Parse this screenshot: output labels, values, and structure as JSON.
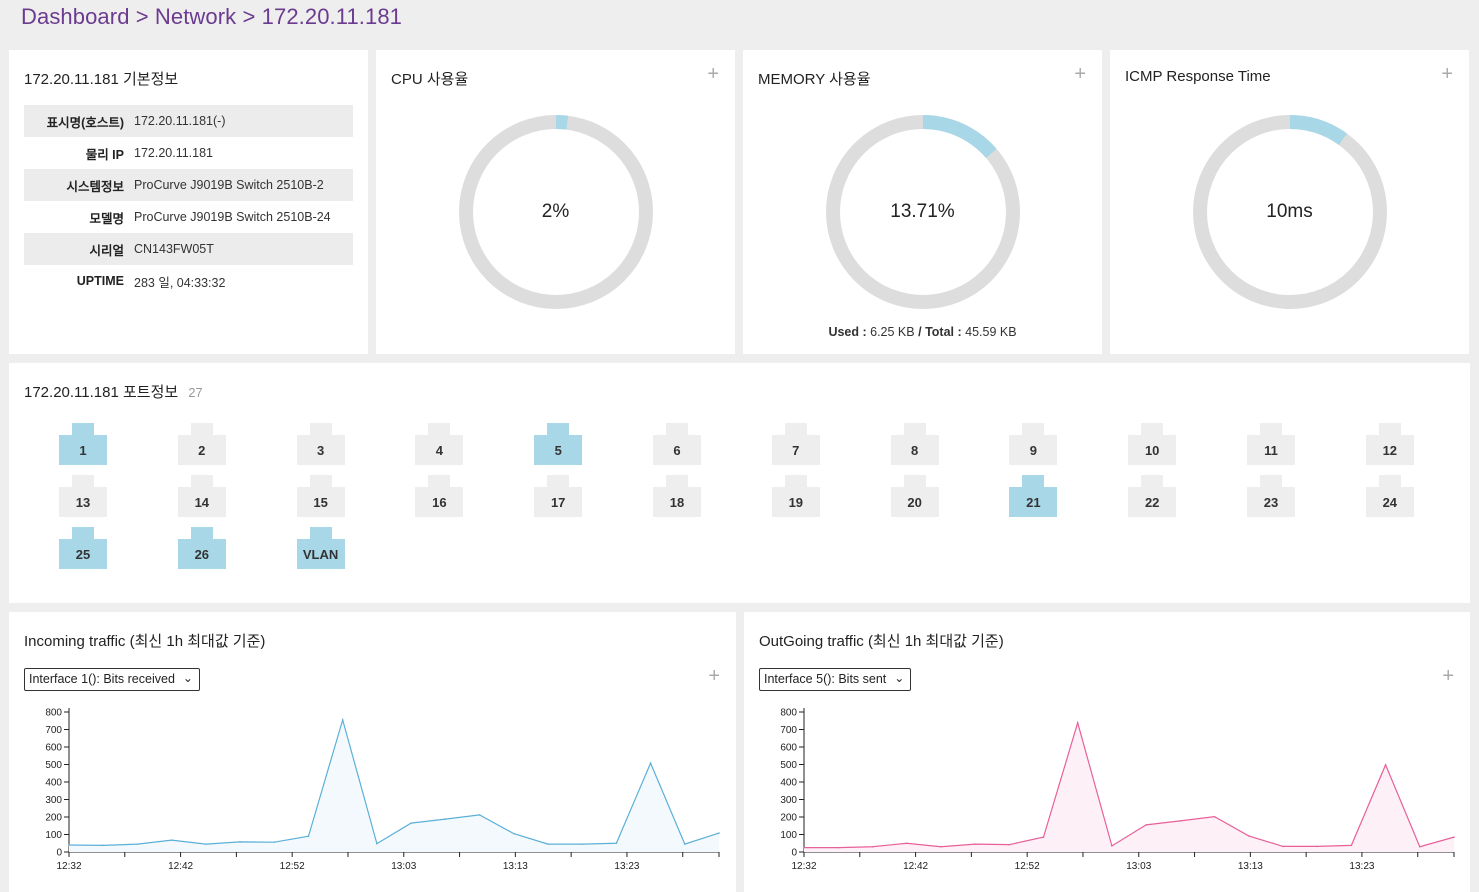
{
  "breadcrumb": "Dashboard > Network > 172.20.11.181",
  "basic_info": {
    "title": "172.20.11.181 기본정보",
    "rows": [
      {
        "key": "표시명(호스트)",
        "value": "172.20.11.181(-)"
      },
      {
        "key": "물리 IP",
        "value": "172.20.11.181"
      },
      {
        "key": "시스템정보",
        "value": "ProCurve J9019B Switch 2510B-2"
      },
      {
        "key": "모델명",
        "value": "ProCurve J9019B Switch 2510B-24"
      },
      {
        "key": "시리얼",
        "value": "CN143FW05T"
      },
      {
        "key": "UPTIME",
        "value": "283 일, 04:33:32"
      }
    ]
  },
  "cpu": {
    "title": "CPU 사용율",
    "value_text": "2%",
    "fraction": 0.02,
    "plus": "+"
  },
  "memory": {
    "title": "MEMORY 사용율",
    "value_text": "13.71%",
    "fraction": 0.1371,
    "plus": "+",
    "used_label": "Used :",
    "used": "6.25 KB",
    "sep": "/",
    "total_label": "Total :",
    "total": "45.59 KB"
  },
  "icmp": {
    "title": "ICMP Response Time",
    "value_text": "10ms",
    "fraction": 0.1,
    "plus": "+"
  },
  "colors": {
    "donut_track": "#dddddd",
    "donut_fill": "#a8d8e8",
    "incoming_line": "#5bb0d8",
    "incoming_fill": "#f3f9fc",
    "outgoing_line": "#e8609a",
    "outgoing_fill": "#fdf0f6"
  },
  "ports": {
    "title": "172.20.11.181 포트정보",
    "count": "27",
    "items": [
      {
        "label": "1",
        "active": true
      },
      {
        "label": "2",
        "active": false
      },
      {
        "label": "3",
        "active": false
      },
      {
        "label": "4",
        "active": false
      },
      {
        "label": "5",
        "active": true
      },
      {
        "label": "6",
        "active": false
      },
      {
        "label": "7",
        "active": false
      },
      {
        "label": "8",
        "active": false
      },
      {
        "label": "9",
        "active": false
      },
      {
        "label": "10",
        "active": false
      },
      {
        "label": "11",
        "active": false
      },
      {
        "label": "12",
        "active": false
      },
      {
        "label": "13",
        "active": false
      },
      {
        "label": "14",
        "active": false
      },
      {
        "label": "15",
        "active": false
      },
      {
        "label": "16",
        "active": false
      },
      {
        "label": "17",
        "active": false
      },
      {
        "label": "18",
        "active": false
      },
      {
        "label": "19",
        "active": false
      },
      {
        "label": "20",
        "active": false
      },
      {
        "label": "21",
        "active": true
      },
      {
        "label": "22",
        "active": false
      },
      {
        "label": "23",
        "active": false
      },
      {
        "label": "24",
        "active": false
      },
      {
        "label": "25",
        "active": true
      },
      {
        "label": "26",
        "active": true
      },
      {
        "label": "VLAN",
        "active": true
      }
    ]
  },
  "incoming": {
    "title": "Incoming traffic (최신 1h 최대값 기준)",
    "select_value": "Interface 1(): Bits received",
    "plus": "+"
  },
  "outgoing": {
    "title": "OutGoing traffic (최신 1h 최대값 기준)",
    "select_value": "Interface 5(): Bits sent",
    "plus": "+"
  },
  "chart_data": [
    {
      "type": "area",
      "ylim": [
        0,
        800
      ],
      "yticks": [
        0,
        100,
        200,
        300,
        400,
        500,
        600,
        700,
        800
      ],
      "xtick_labels": [
        "12:32",
        "12:42",
        "12:52",
        "13:03",
        "13:13",
        "13:23"
      ],
      "values": [
        40,
        38,
        45,
        68,
        45,
        58,
        56,
        90,
        755,
        48,
        165,
        188,
        212,
        105,
        45,
        45,
        50,
        508,
        45,
        108
      ]
    },
    {
      "type": "area",
      "ylim": [
        0,
        800
      ],
      "yticks": [
        0,
        100,
        200,
        300,
        400,
        500,
        600,
        700,
        800
      ],
      "xtick_labels": [
        "12:32",
        "12:42",
        "12:52",
        "13:03",
        "13:13",
        "13:23"
      ],
      "values": [
        25,
        25,
        30,
        50,
        30,
        45,
        42,
        85,
        738,
        35,
        155,
        178,
        202,
        92,
        32,
        32,
        38,
        498,
        30,
        85
      ]
    }
  ]
}
